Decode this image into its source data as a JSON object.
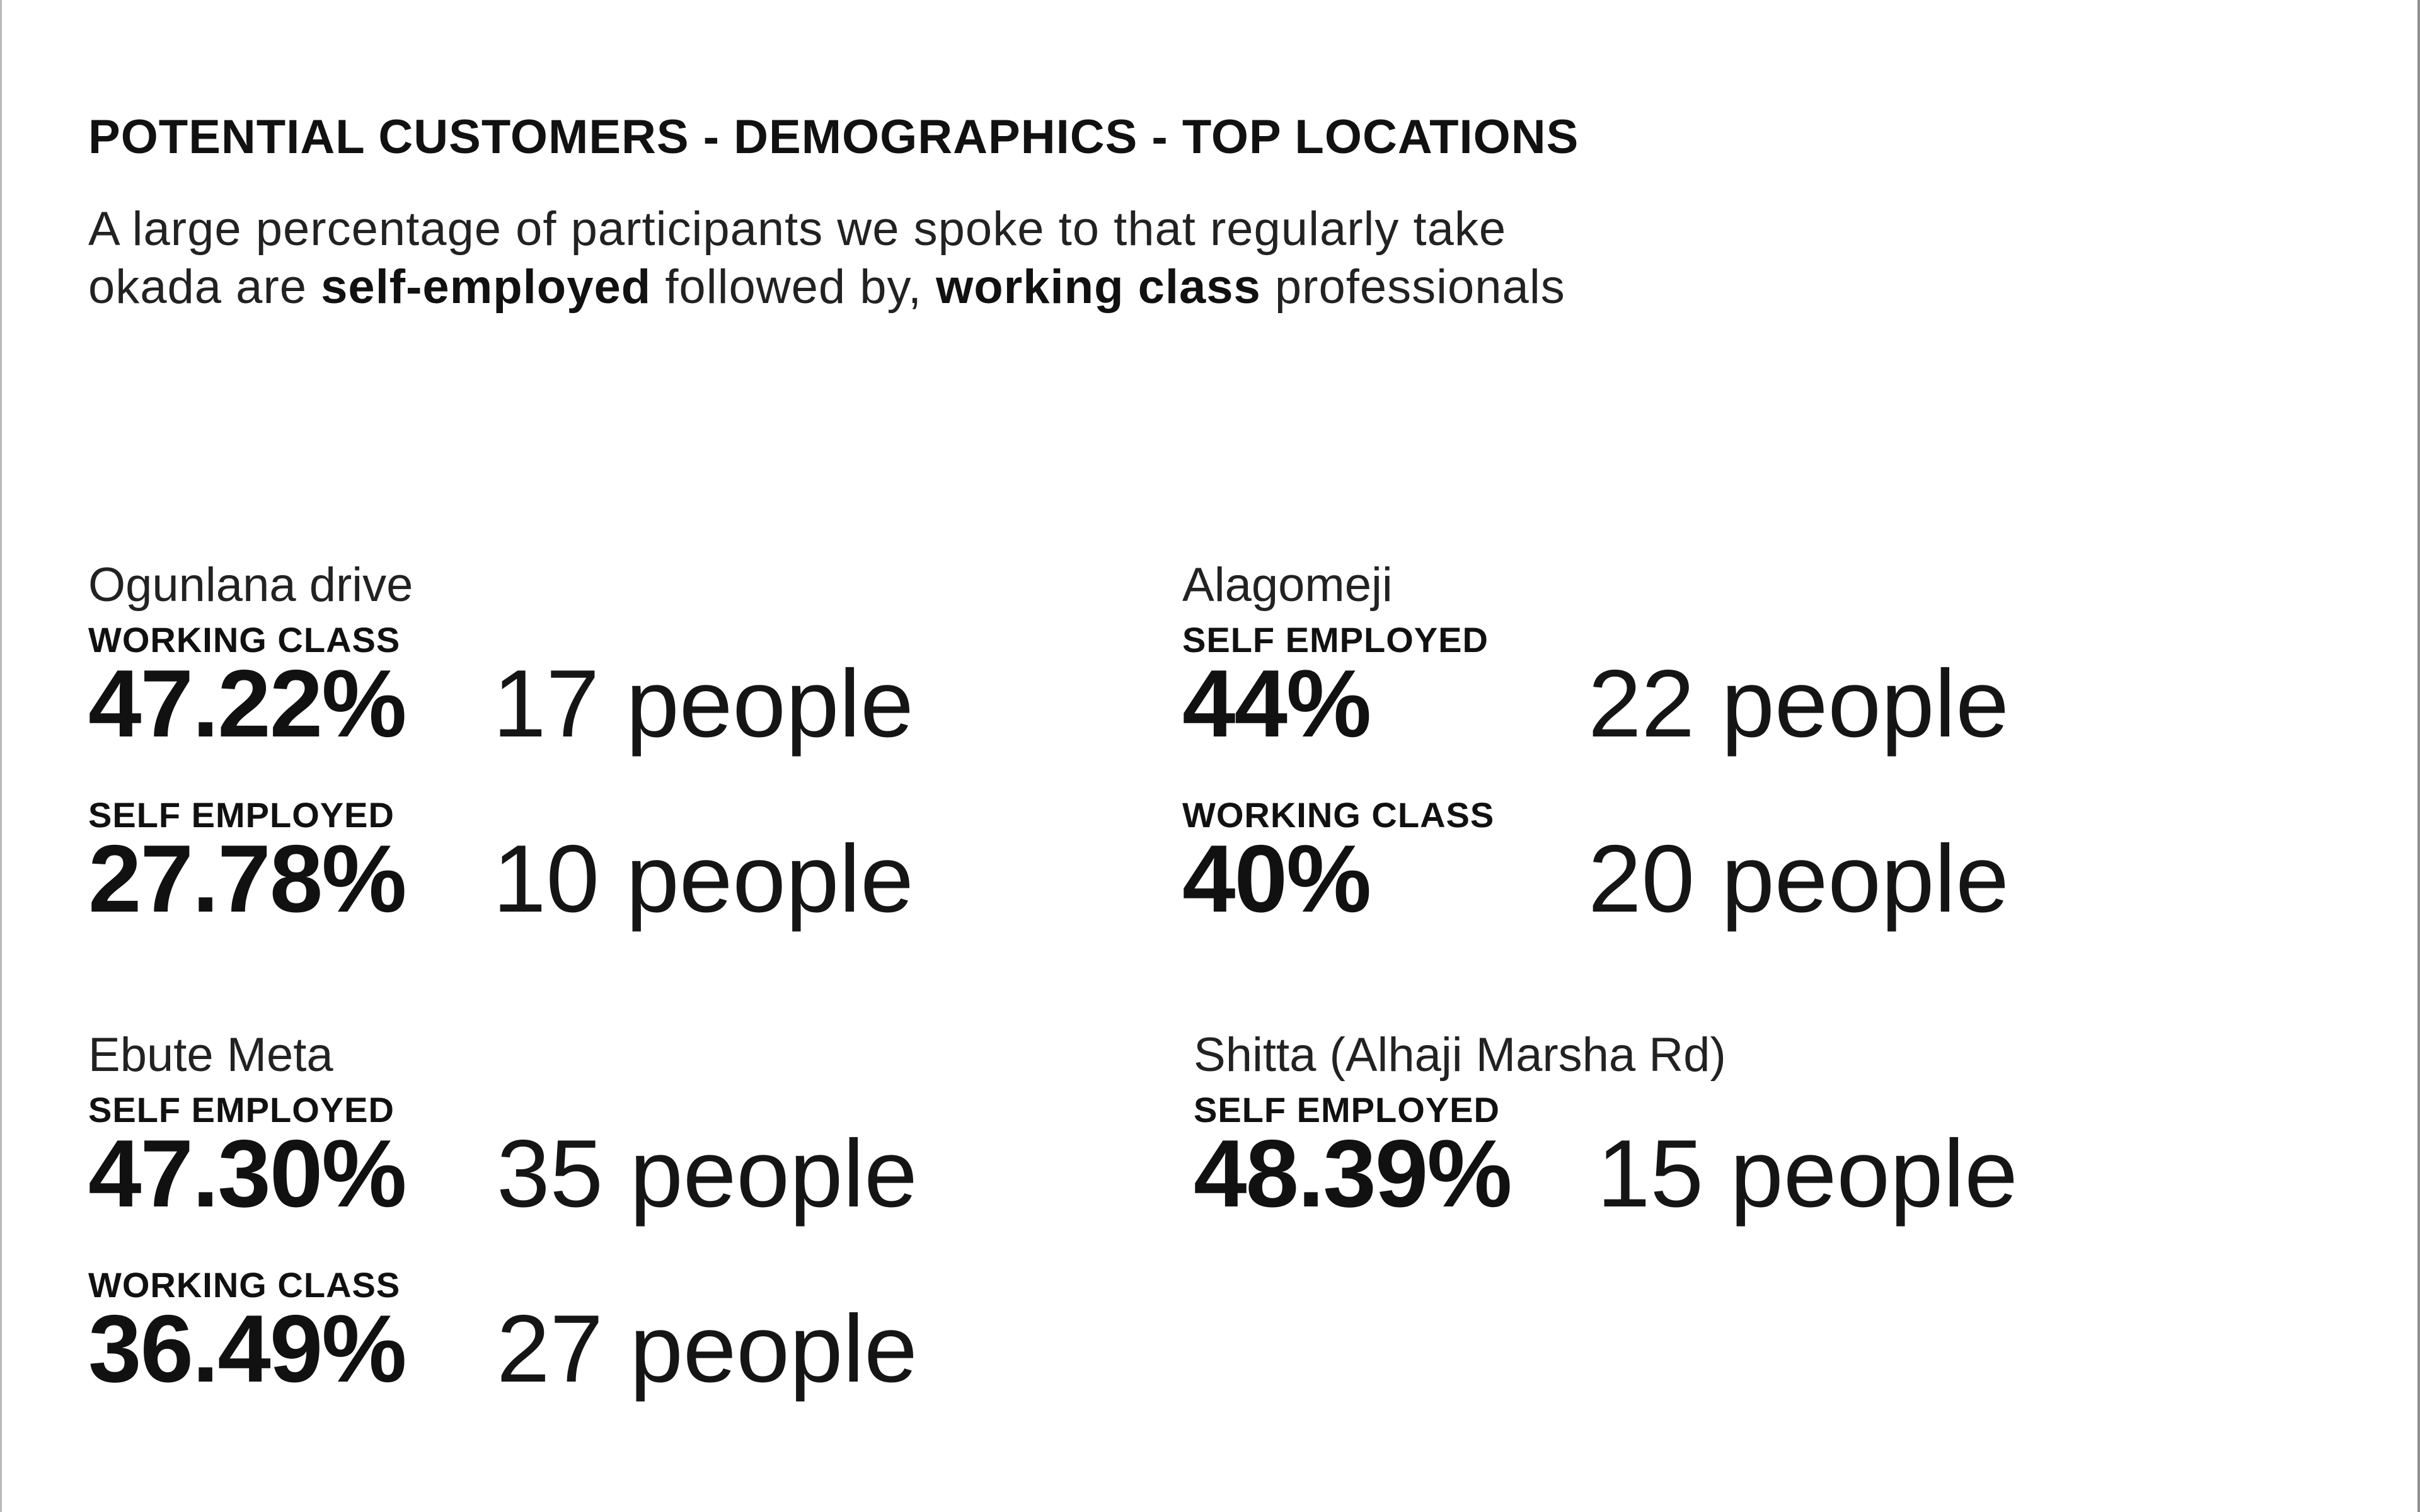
{
  "header": {
    "title": "POTENTIAL CUSTOMERS - DEMOGRAPHICS - TOP LOCATIONS",
    "subtitle_line1": "A large percentage of participants we spoke to that regularly take",
    "subtitle_line2_pre": "okada are ",
    "subtitle_line2_bold1": "self-employed",
    "subtitle_line2_mid": " followed by, ",
    "subtitle_line2_bold2": "working class",
    "subtitle_line2_post": " professionals"
  },
  "locations": [
    {
      "name": "Ogunlana drive",
      "stats": [
        {
          "label": "WORKING CLASS",
          "percent": "47.22%",
          "count": "17 people"
        },
        {
          "label": "SELF EMPLOYED",
          "percent": "27.78%",
          "count": "10 people"
        }
      ]
    },
    {
      "name": "Alagomeji",
      "stats": [
        {
          "label": "SELF EMPLOYED",
          "percent": "44%",
          "count": "22 people"
        },
        {
          "label": "WORKING CLASS",
          "percent": "40%",
          "count": "20 people"
        }
      ]
    },
    {
      "name": "Ebute Meta",
      "stats": [
        {
          "label": "SELF EMPLOYED",
          "percent": "47.30%",
          "count": "35 people"
        },
        {
          "label": "WORKING CLASS",
          "percent": "36.49%",
          "count": "27 people"
        }
      ]
    },
    {
      "name": "Shitta (Alhaji Marsha Rd)",
      "stats": [
        {
          "label": "SELF EMPLOYED",
          "percent": "48.39%",
          "count": "15 people"
        }
      ]
    }
  ]
}
